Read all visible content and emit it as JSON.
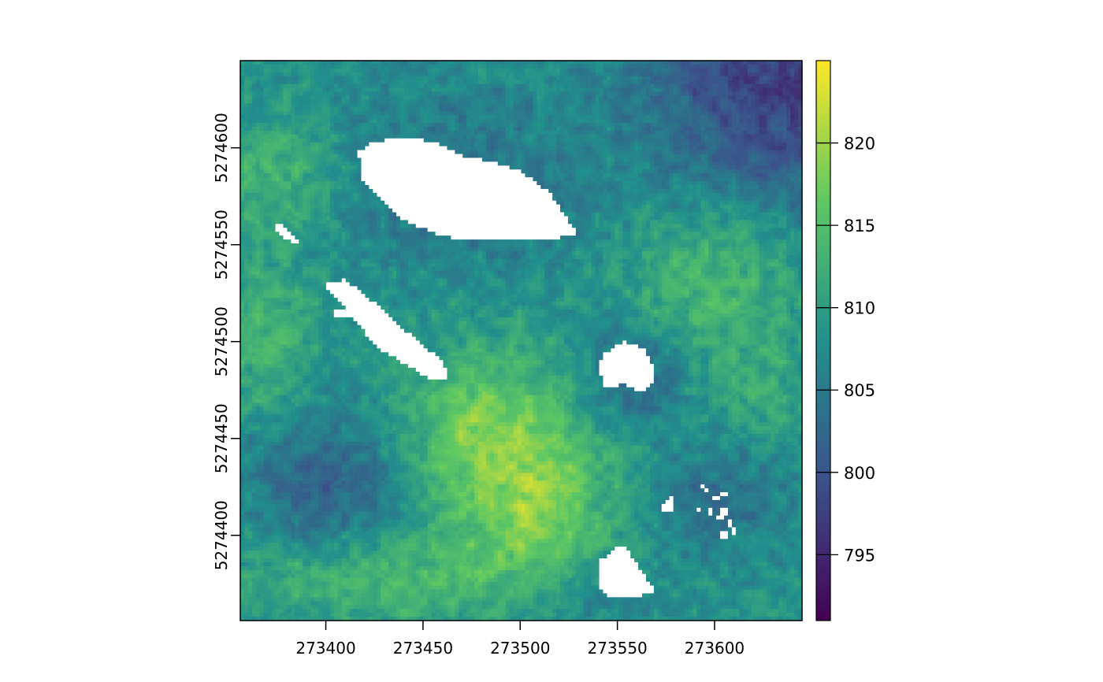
{
  "chart_data": {
    "type": "heatmap",
    "title": "",
    "xlabel": "",
    "ylabel": "",
    "x_ticks": [
      "273400",
      "273450",
      "273500",
      "273550",
      "273600"
    ],
    "x_tick_values": [
      273400,
      273450,
      273500,
      273550,
      273600
    ],
    "y_ticks": [
      "5274400",
      "5274450",
      "5274500",
      "5274550",
      "5274600"
    ],
    "y_tick_values": [
      5274400,
      5274450,
      5274500,
      5274550,
      5274600
    ],
    "xlim": [
      273356,
      273645
    ],
    "ylim": [
      5274356,
      5274645
    ],
    "colorbar": {
      "palette": "viridis",
      "range": [
        791,
        825
      ],
      "ticks": [
        "795",
        "800",
        "805",
        "810",
        "815",
        "820"
      ],
      "tick_values": [
        795,
        800,
        805,
        810,
        815,
        820
      ]
    },
    "color_stops": [
      "#440154",
      "#3b528b",
      "#21908c",
      "#5dc863",
      "#fde725"
    ],
    "missing_color": "#ffffff",
    "grid": false,
    "legend": "right"
  }
}
